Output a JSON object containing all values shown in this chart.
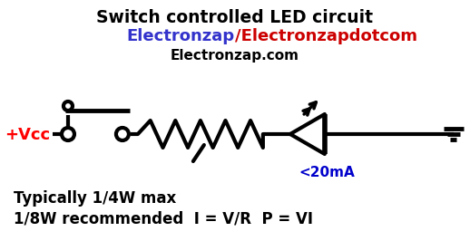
{
  "title_line1": "Switch controlled LED circuit",
  "title_line2_blue": "Electronzap",
  "title_line2_slash": "/",
  "title_line2_red": "Electronzapdotcom",
  "title_line3": "Electronzap.com",
  "label_vcc": "+Vcc",
  "label_current": "<20mA",
  "label_resistor": "Typically 1/4W max",
  "label_resistor2": "1/8W recommended  I = V/R  P = VI",
  "bg_color": "#ffffff",
  "line_color": "#000000",
  "vcc_color": "#ff0000",
  "blue_color": "#3333cc",
  "red_color": "#cc0000",
  "current_color": "#0000cc",
  "black_color": "#000000",
  "figsize": [
    5.18,
    2.66
  ],
  "dpi": 100
}
